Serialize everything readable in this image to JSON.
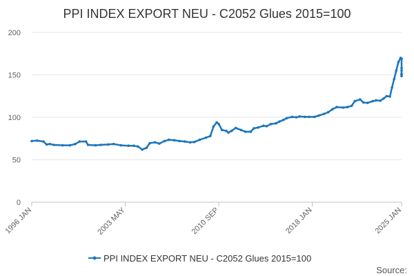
{
  "chart_data": {
    "type": "line",
    "title": "PPI INDEX EXPORT NEU - C2052 Glues 2015=100",
    "xlabel": "",
    "ylabel": "",
    "ylim": [
      0,
      200
    ],
    "yticks": [
      0,
      50,
      100,
      150,
      200
    ],
    "xlim": [
      "1996-01",
      "2025-01"
    ],
    "xticks": [
      {
        "label": "1996 JAN",
        "date": "1996-01"
      },
      {
        "label": "2003 MAY",
        "date": "2003-05"
      },
      {
        "label": "2010 SEP",
        "date": "2010-09"
      },
      {
        "label": "2018 JAN",
        "date": "2018-01"
      },
      {
        "label": "2025 JAN",
        "date": "2025-01"
      }
    ],
    "grid": true,
    "legend_position": "bottom-center",
    "source_label": "Source:",
    "series": [
      {
        "name": "PPI INDEX EXPORT NEU - C2052 Glues 2015=100",
        "color": "#1a75bc",
        "points": [
          [
            "1996-01",
            72
          ],
          [
            "1996-06",
            72.5
          ],
          [
            "1996-12",
            71.5
          ],
          [
            "1997-03",
            68
          ],
          [
            "1997-06",
            68.5
          ],
          [
            "1997-10",
            67.5
          ],
          [
            "1998-06",
            67
          ],
          [
            "1999-01",
            67
          ],
          [
            "1999-06",
            68.5
          ],
          [
            "1999-10",
            71.5
          ],
          [
            "2000-04",
            71.5
          ],
          [
            "2000-06",
            67.5
          ],
          [
            "2001-01",
            67
          ],
          [
            "2001-06",
            67.5
          ],
          [
            "2002-01",
            68
          ],
          [
            "2002-06",
            68.5
          ],
          [
            "2003-01",
            67
          ],
          [
            "2003-08",
            66.5
          ],
          [
            "2004-01",
            66.5
          ],
          [
            "2004-05",
            65.5
          ],
          [
            "2004-09",
            62
          ],
          [
            "2005-01",
            64
          ],
          [
            "2005-04",
            69.5
          ],
          [
            "2005-09",
            70.5
          ],
          [
            "2006-01",
            69
          ],
          [
            "2006-06",
            72
          ],
          [
            "2006-10",
            73.5
          ],
          [
            "2007-03",
            73
          ],
          [
            "2007-08",
            72
          ],
          [
            "2008-01",
            71.5
          ],
          [
            "2008-06",
            70.5
          ],
          [
            "2008-10",
            71
          ],
          [
            "2009-03",
            73.5
          ],
          [
            "2009-09",
            76
          ],
          [
            "2010-01",
            78
          ],
          [
            "2010-04",
            89
          ],
          [
            "2010-07",
            94
          ],
          [
            "2010-09",
            92
          ],
          [
            "2010-12",
            85
          ],
          [
            "2011-04",
            84
          ],
          [
            "2011-06",
            82
          ],
          [
            "2011-09",
            84
          ],
          [
            "2012-01",
            87.5
          ],
          [
            "2012-06",
            85
          ],
          [
            "2012-10",
            83
          ],
          [
            "2013-03",
            83
          ],
          [
            "2013-06",
            87
          ],
          [
            "2013-10",
            88
          ],
          [
            "2014-03",
            90
          ],
          [
            "2014-06",
            89.5
          ],
          [
            "2014-10",
            92
          ],
          [
            "2015-03",
            93
          ],
          [
            "2015-06",
            95
          ],
          [
            "2015-10",
            97
          ],
          [
            "2016-01",
            99
          ],
          [
            "2016-06",
            100.5
          ],
          [
            "2016-10",
            100
          ],
          [
            "2017-01",
            101
          ],
          [
            "2017-06",
            100.5
          ],
          [
            "2017-10",
            100.5
          ],
          [
            "2018-03",
            100.5
          ],
          [
            "2018-07",
            102
          ],
          [
            "2018-12",
            104
          ],
          [
            "2019-04",
            106
          ],
          [
            "2019-08",
            109.5
          ],
          [
            "2019-12",
            112
          ],
          [
            "2020-06",
            111.5
          ],
          [
            "2020-10",
            112
          ],
          [
            "2021-02",
            113.5
          ],
          [
            "2021-05",
            119
          ],
          [
            "2021-10",
            121
          ],
          [
            "2022-01",
            117.5
          ],
          [
            "2022-05",
            117
          ],
          [
            "2022-10",
            119
          ],
          [
            "2023-01",
            120
          ],
          [
            "2023-05",
            119.5
          ],
          [
            "2023-08",
            122
          ],
          [
            "2023-11",
            125
          ],
          [
            "2024-02",
            124.5
          ],
          [
            "2024-04",
            135
          ],
          [
            "2024-06",
            145
          ],
          [
            "2024-08",
            155
          ],
          [
            "2024-10",
            165
          ],
          [
            "2024-12",
            170
          ],
          [
            "2025-01",
            169
          ],
          [
            "2025-03",
            158
          ],
          [
            "2025-06",
            155
          ],
          [
            "2025-09",
            151
          ],
          [
            "2025-12",
            150
          ],
          [
            "2026-03",
            148.5
          ],
          [
            "2026-06",
            151
          ]
        ]
      }
    ]
  }
}
